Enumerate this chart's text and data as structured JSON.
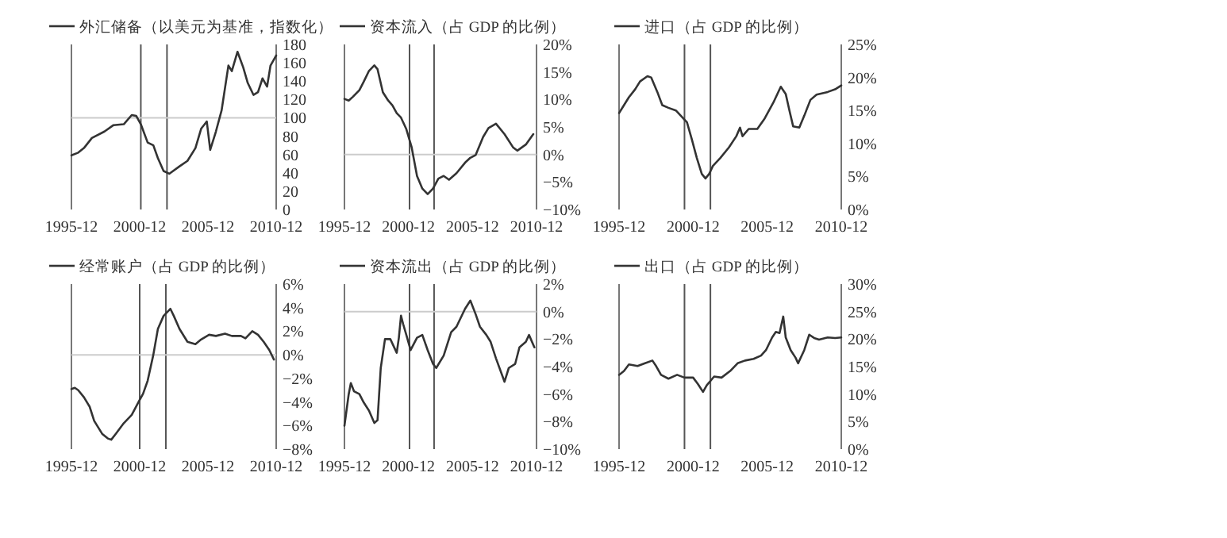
{
  "chart_data": [
    {
      "type": "line",
      "legend": "top",
      "xlim": [
        "1995-12",
        "2010-12"
      ],
      "xticks": [
        "1995-12",
        "2000-12",
        "2005-12",
        "2010-12"
      ],
      "ylim": [
        0,
        180
      ],
      "yticks": [
        0,
        20,
        40,
        60,
        80,
        100,
        120,
        140,
        160,
        180
      ],
      "ref_lines": [
        {
          "axis": "x",
          "value": "2001-01",
          "color": "#555555"
        },
        {
          "axis": "x",
          "value": "2002-12",
          "color": "#555555"
        },
        {
          "axis": "y",
          "value": 100,
          "color": "#cccccc"
        }
      ],
      "series": [
        {
          "name": "外汇储备（以美元为基准，指数化）",
          "color": "#333333",
          "x": [
            "1995-12",
            "1996-06",
            "1996-11",
            "1997-06",
            "1998-05",
            "1999-01",
            "1999-10",
            "2000-05",
            "2000-09",
            "2001-01",
            "2001-07",
            "2001-12",
            "2002-04",
            "2002-09",
            "2003-02",
            "2003-11",
            "2004-06",
            "2005-01",
            "2005-06",
            "2005-11",
            "2006-02",
            "2006-07",
            "2006-12",
            "2007-06",
            "2007-09",
            "2008-02",
            "2008-07",
            "2008-11",
            "2009-04",
            "2009-08",
            "2009-12",
            "2010-04",
            "2010-07",
            "2010-12"
          ],
          "values": [
            59,
            62,
            67,
            78,
            85,
            92,
            93,
            103,
            102,
            93,
            73,
            70,
            56,
            42,
            39,
            47,
            53,
            67,
            88,
            96,
            65,
            85,
            108,
            157,
            151,
            172,
            155,
            138,
            125,
            128,
            143,
            134,
            157,
            168
          ]
        }
      ]
    },
    {
      "type": "line",
      "legend": "top",
      "xlim": [
        "1995-12",
        "2010-12"
      ],
      "xticks": [
        "1995-12",
        "2000-12",
        "2005-12",
        "2010-12"
      ],
      "ylim": [
        -10,
        20
      ],
      "yticks": [
        {
          "value": -10,
          "label": "−10%"
        },
        {
          "value": -5,
          "label": "−5%"
        },
        {
          "value": 0,
          "label": "0%"
        },
        {
          "value": 5,
          "label": "5%"
        },
        {
          "value": 10,
          "label": "10%"
        },
        {
          "value": 15,
          "label": "15%"
        },
        {
          "value": 20,
          "label": "20%"
        }
      ],
      "ref_lines": [
        {
          "axis": "x",
          "value": "2001-01",
          "color": "#555555"
        },
        {
          "axis": "x",
          "value": "2002-12",
          "color": "#555555"
        },
        {
          "axis": "y",
          "value": 0,
          "color": "#cccccc"
        }
      ],
      "series": [
        {
          "name": "资本流入（占 GDP 的比例）",
          "color": "#333333",
          "x": [
            "1995-12",
            "1996-04",
            "1996-08",
            "1997-02",
            "1997-06",
            "1997-11",
            "1998-04",
            "1998-07",
            "1998-12",
            "1999-05",
            "1999-09",
            "2000-01",
            "2000-05",
            "2000-10",
            "2001-03",
            "2001-08",
            "2002-01",
            "2002-06",
            "2002-11",
            "2003-04",
            "2003-09",
            "2004-02",
            "2004-09",
            "2005-05",
            "2005-10",
            "2006-03",
            "2006-10",
            "2007-03",
            "2007-10",
            "2008-06",
            "2009-02",
            "2009-06",
            "2010-02",
            "2010-09"
          ],
          "values": [
            10.1,
            9.8,
            10.5,
            11.7,
            13.2,
            15.2,
            16.2,
            15.5,
            11.3,
            9.8,
            8.9,
            7.5,
            6.7,
            4.6,
            1.3,
            -3.9,
            -6.2,
            -7.2,
            -6.2,
            -4.4,
            -3.9,
            -4.6,
            -3.4,
            -1.5,
            -0.6,
            -0.1,
            3.2,
            4.8,
            5.6,
            3.7,
            1.3,
            0.7,
            1.8,
            3.7
          ]
        }
      ]
    },
    {
      "type": "line",
      "legend": "top",
      "xlim": [
        "1995-12",
        "2010-12"
      ],
      "xticks": [
        "1995-12",
        "2000-12",
        "2005-12",
        "2010-12"
      ],
      "ylim": [
        0,
        25
      ],
      "yticks": [
        {
          "value": 0,
          "label": "0%"
        },
        {
          "value": 5,
          "label": "5%"
        },
        {
          "value": 10,
          "label": "10%"
        },
        {
          "value": 15,
          "label": "15%"
        },
        {
          "value": 20,
          "label": "20%"
        },
        {
          "value": 25,
          "label": "25%"
        }
      ],
      "ref_lines": [
        {
          "axis": "x",
          "value": "2000-05",
          "color": "#555555"
        },
        {
          "axis": "x",
          "value": "2002-02",
          "color": "#555555"
        }
      ],
      "series": [
        {
          "name": "进口（占 GDP 的比例）",
          "color": "#333333",
          "x": [
            "1995-12",
            "1996-04",
            "1996-08",
            "1997-01",
            "1997-05",
            "1997-11",
            "1998-02",
            "1998-07",
            "1998-11",
            "1999-04",
            "1999-10",
            "2000-04",
            "2000-07",
            "2000-11",
            "2001-03",
            "2001-07",
            "2001-10",
            "2002-01",
            "2002-04",
            "2002-10",
            "2003-05",
            "2003-11",
            "2004-02",
            "2004-04",
            "2004-09",
            "2005-04",
            "2005-10",
            "2006-05",
            "2006-11",
            "2007-03",
            "2007-06",
            "2007-09",
            "2008-02",
            "2008-06",
            "2008-11",
            "2009-04",
            "2010-01",
            "2010-07",
            "2010-12"
          ],
          "values": [
            14.6,
            15.8,
            17.0,
            18.2,
            19.4,
            20.2,
            20.0,
            17.8,
            15.8,
            15.4,
            15.0,
            13.8,
            13.2,
            10.6,
            7.8,
            5.4,
            4.7,
            5.4,
            6.6,
            7.8,
            9.4,
            11.1,
            12.4,
            11.1,
            12.2,
            12.2,
            13.8,
            16.2,
            18.6,
            17.5,
            15.0,
            12.6,
            12.4,
            14.2,
            16.6,
            17.4,
            17.8,
            18.2,
            18.8
          ]
        }
      ]
    },
    {
      "type": "line",
      "legend": "top",
      "xlim": [
        "1995-12",
        "2010-12"
      ],
      "xticks": [
        "1995-12",
        "2000-12",
        "2005-12",
        "2010-12"
      ],
      "ylim": [
        -8,
        6
      ],
      "yticks": [
        {
          "value": -8,
          "label": "−8%"
        },
        {
          "value": -6,
          "label": "−6%"
        },
        {
          "value": -4,
          "label": "−4%"
        },
        {
          "value": -2,
          "label": "−2%"
        },
        {
          "value": 0,
          "label": "0%"
        },
        {
          "value": 2,
          "label": "2%"
        },
        {
          "value": 4,
          "label": "4%"
        },
        {
          "value": 6,
          "label": "6%"
        }
      ],
      "ref_lines": [
        {
          "axis": "x",
          "value": "2000-12",
          "color": "#555555"
        },
        {
          "axis": "x",
          "value": "2002-11",
          "color": "#555555"
        },
        {
          "axis": "y",
          "value": 0,
          "color": "#cccccc"
        }
      ],
      "series": [
        {
          "name": "经常账户（占 GDP 的比例）",
          "color": "#333333",
          "x": [
            "1995-12",
            "1996-03",
            "1996-06",
            "1996-11",
            "1997-04",
            "1997-08",
            "1998-03",
            "1998-08",
            "1998-11",
            "1999-03",
            "1999-10",
            "2000-05",
            "2000-11",
            "2001-03",
            "2001-07",
            "2001-12",
            "2002-04",
            "2002-09",
            "2003-03",
            "2003-06",
            "2003-11",
            "2004-06",
            "2005-01",
            "2005-06",
            "2006-01",
            "2006-07",
            "2007-03",
            "2007-09",
            "2008-05",
            "2008-09",
            "2009-03",
            "2009-08",
            "2010-01",
            "2010-06",
            "2010-10"
          ],
          "values": [
            -2.9,
            -2.8,
            -3.0,
            -3.6,
            -4.4,
            -5.6,
            -6.7,
            -7.1,
            -7.2,
            -6.7,
            -5.8,
            -5.1,
            -4.0,
            -3.3,
            -2.2,
            0,
            2.2,
            3.3,
            3.9,
            3.3,
            2.2,
            1.1,
            0.9,
            1.3,
            1.7,
            1.6,
            1.8,
            1.6,
            1.6,
            1.4,
            2.0,
            1.7,
            1.1,
            0.4,
            -0.4
          ]
        }
      ]
    },
    {
      "type": "line",
      "legend": "top",
      "xlim": [
        "1995-12",
        "2010-12"
      ],
      "xticks": [
        "1995-12",
        "2000-12",
        "2005-12",
        "2010-12"
      ],
      "ylim": [
        -10,
        2
      ],
      "yticks": [
        {
          "value": -10,
          "label": "−10%"
        },
        {
          "value": -8,
          "label": "−8%"
        },
        {
          "value": -6,
          "label": "−6%"
        },
        {
          "value": -4,
          "label": "−4%"
        },
        {
          "value": -2,
          "label": "−2%"
        },
        {
          "value": 0,
          "label": "0%"
        },
        {
          "value": 2,
          "label": "2%"
        }
      ],
      "ref_lines": [
        {
          "axis": "x",
          "value": "2001-01",
          "color": "#555555"
        },
        {
          "axis": "x",
          "value": "2002-12",
          "color": "#555555"
        },
        {
          "axis": "y",
          "value": 0,
          "color": "#cccccc"
        }
      ],
      "series": [
        {
          "name": "资本流出（占 GDP 的比例）",
          "color": "#333333",
          "x": [
            "1995-12",
            "1996-04",
            "1996-06",
            "1996-09",
            "1997-02",
            "1997-06",
            "1997-11",
            "1998-04",
            "1998-07",
            "1998-10",
            "1999-02",
            "1999-07",
            "2000-01",
            "2000-03",
            "2000-05",
            "2000-07",
            "2000-10",
            "2001-02",
            "2001-08",
            "2002-01",
            "2002-06",
            "2002-11",
            "2003-02",
            "2003-09",
            "2004-04",
            "2004-09",
            "2005-05",
            "2005-10",
            "2006-03",
            "2006-07",
            "2007-01",
            "2007-05",
            "2007-10",
            "2008-06",
            "2008-10",
            "2009-04",
            "2009-08",
            "2010-02",
            "2010-05",
            "2010-10"
          ],
          "values": [
            -8.3,
            -6.0,
            -5.2,
            -5.8,
            -6.0,
            -6.6,
            -7.2,
            -8.1,
            -7.9,
            -4.1,
            -2.0,
            -2.0,
            -3.0,
            -1.9,
            -0.3,
            -0.9,
            -1.7,
            -2.8,
            -1.9,
            -1.7,
            -2.8,
            -3.8,
            -4.1,
            -3.2,
            -1.5,
            -1.1,
            0.2,
            0.8,
            -0.2,
            -1.1,
            -1.7,
            -2.2,
            -3.4,
            -5.1,
            -4.1,
            -3.8,
            -2.6,
            -2.2,
            -1.7,
            -2.6
          ]
        }
      ]
    },
    {
      "type": "line",
      "legend": "top",
      "xlim": [
        "1995-12",
        "2010-12"
      ],
      "xticks": [
        "1995-12",
        "2000-12",
        "2005-12",
        "2010-12"
      ],
      "ylim": [
        0,
        30
      ],
      "yticks": [
        {
          "value": 0,
          "label": "0%"
        },
        {
          "value": 5,
          "label": "5%"
        },
        {
          "value": 10,
          "label": "10%"
        },
        {
          "value": 15,
          "label": "15%"
        },
        {
          "value": 20,
          "label": "20%"
        },
        {
          "value": 25,
          "label": "25%"
        },
        {
          "value": 30,
          "label": "30%"
        }
      ],
      "ref_lines": [
        {
          "axis": "x",
          "value": "2000-05",
          "color": "#555555"
        },
        {
          "axis": "x",
          "value": "2002-02",
          "color": "#555555"
        }
      ],
      "series": [
        {
          "name": "出口（占 GDP 的比例）",
          "color": "#333333",
          "x": [
            "1995-12",
            "1996-04",
            "1996-08",
            "1997-03",
            "1997-09",
            "1998-03",
            "1998-06",
            "1998-10",
            "1999-04",
            "1999-11",
            "2000-05",
            "2000-12",
            "2001-04",
            "2001-08",
            "2001-11",
            "2002-05",
            "2002-11",
            "2003-06",
            "2003-12",
            "2004-06",
            "2005-01",
            "2005-07",
            "2005-11",
            "2006-04",
            "2006-07",
            "2006-10",
            "2007-01",
            "2007-03",
            "2007-07",
            "2007-11",
            "2008-01",
            "2008-06",
            "2008-10",
            "2009-02",
            "2009-06",
            "2010-01",
            "2010-07",
            "2010-12"
          ],
          "values": [
            13.5,
            14.2,
            15.4,
            15.1,
            15.6,
            16.1,
            15.1,
            13.5,
            12.8,
            13.5,
            13.0,
            13.0,
            11.8,
            10.4,
            11.6,
            13.2,
            13.0,
            14.2,
            15.6,
            16.1,
            16.4,
            17.0,
            18.0,
            20.3,
            21.3,
            21.1,
            24.1,
            20.3,
            18.0,
            16.6,
            15.6,
            18.0,
            20.8,
            20.2,
            19.9,
            20.3,
            20.2,
            20.3
          ]
        }
      ]
    }
  ]
}
